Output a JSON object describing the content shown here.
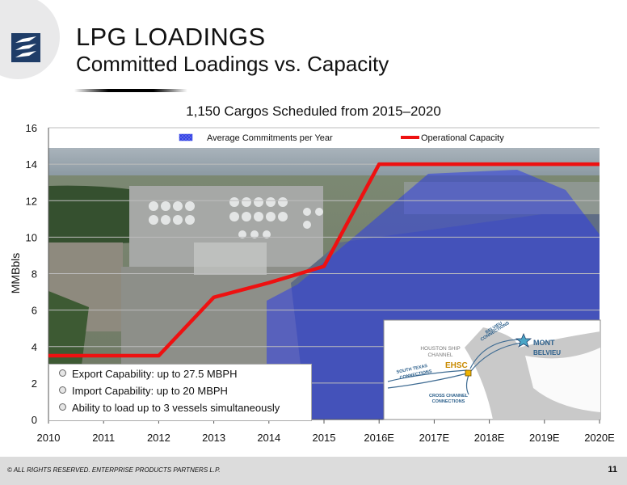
{
  "slide": {
    "title": "LPG LOADINGS",
    "subtitle": "Committed Loadings vs. Capacity",
    "footer": "© ALL RIGHTS RESERVED. ENTERPRISE PRODUCTS PARTNERS L.P.",
    "page_number": "11"
  },
  "chart_data": {
    "type": "line",
    "title": "1,150 Cargos Scheduled from 2015–2020",
    "xlabel": "",
    "ylabel": "MMBbls",
    "categories": [
      "2010",
      "2011",
      "2012",
      "2013",
      "2014",
      "2015",
      "2016E",
      "2017E",
      "2018E",
      "2019E",
      "2020E"
    ],
    "ylim": [
      0,
      16
    ],
    "yticks": [
      0,
      2,
      4,
      6,
      8,
      10,
      12,
      14,
      16
    ],
    "grid": true,
    "legend": [
      "Average Commitments per Year",
      "Operational Capacity"
    ],
    "legend_position": "top",
    "series": [
      {
        "name": "Operational Capacity",
        "color": "#ee1111",
        "values": [
          3.5,
          3.5,
          3.5,
          6.7,
          7.5,
          8.4,
          14,
          14,
          14,
          14,
          14
        ]
      }
    ],
    "commitments_color": "#2d3ce6",
    "commitments_label": "Average Commitments per Year"
  },
  "capabilities": [
    "Export Capability:  up to 27.5 MBPH",
    "Import Capability:  up to 20 MBPH",
    "Ability to load up to 3 vessels simultaneously"
  ],
  "inset_map": {
    "houston_ship_channel": [
      "HOUSTON SHIP",
      "CHANNEL"
    ],
    "belvieu_connections": [
      "BELVIEU",
      "CONNECTIONS"
    ],
    "mont_belvieu": [
      "MONT",
      "BELVIEU"
    ],
    "south_texas_connections": [
      "SOUTH TEXAS",
      "CONNECTIONS"
    ],
    "ehsc": "EHSC",
    "cross_channel_connections": [
      "CROSS CHANNEL",
      "CONNECTIONS"
    ]
  }
}
